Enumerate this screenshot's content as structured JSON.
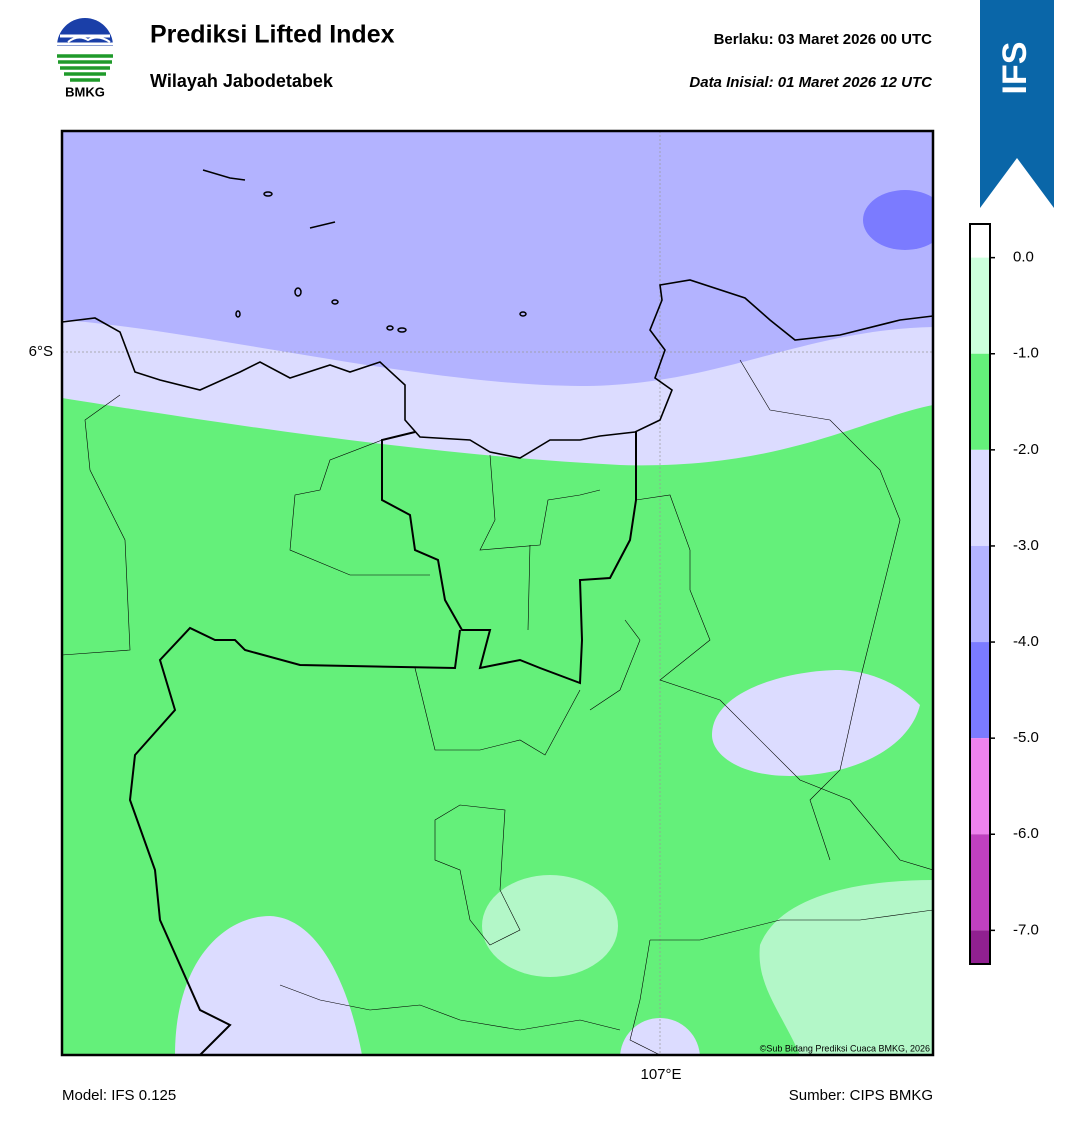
{
  "header": {
    "title": "Prediksi Lifted Index",
    "subtitle": "Wilayah Jabodetabek",
    "valid": "Berlaku:  03 Maret 2026 00 UTC",
    "initial": "Data Inisial:  01 Maret 2026 12 UTC",
    "logo_text": "BMKG",
    "badge": "IFS"
  },
  "map": {
    "lat_label": "6°S",
    "lon_label": "107°E",
    "credit": "©Sub Bidang Prediksi Cuaca BMKG, 2026"
  },
  "colorbar": {
    "range": [
      -7.35,
      0.35
    ],
    "ticks": [
      {
        "value": 0,
        "label": "0.0"
      },
      {
        "value": -1,
        "label": "-1.0"
      },
      {
        "value": -2,
        "label": "-2.0"
      },
      {
        "value": -3,
        "label": "-3.0"
      },
      {
        "value": -4,
        "label": "-4.0"
      },
      {
        "value": -5,
        "label": "-5.0"
      },
      {
        "value": -6,
        "label": "-6.0"
      },
      {
        "value": -7,
        "label": "-7.0"
      }
    ],
    "colors": [
      "#ffffff",
      "#ccffdd",
      "#64f07a",
      "#dcdcff",
      "#b3b3ff",
      "#7b7bff",
      "#ee82ee",
      "#c040c0",
      "#902090"
    ]
  },
  "footer": {
    "model": "Model: IFS 0.125",
    "source": "Sumber: CIPS BMKG"
  }
}
